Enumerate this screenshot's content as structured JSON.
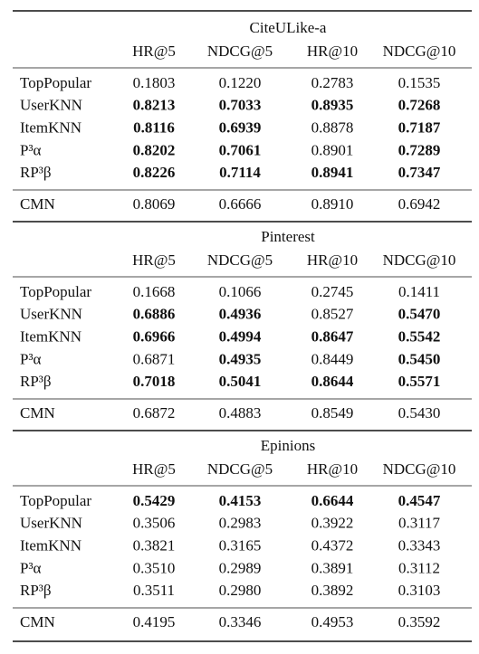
{
  "sections": [
    {
      "title": "CiteULike-a",
      "header": [
        "HR@5",
        "NDCG@5",
        "HR@10",
        "NDCG@10"
      ],
      "rows": [
        {
          "label": "TopPopular",
          "cells": [
            {
              "text": "0.1803",
              "bold": false
            },
            {
              "text": "0.1220",
              "bold": false
            },
            {
              "text": "0.2783",
              "bold": false
            },
            {
              "text": "0.1535",
              "bold": false
            }
          ]
        },
        {
          "label": "UserKNN",
          "cells": [
            {
              "text": "0.8213",
              "bold": true
            },
            {
              "text": "0.7033",
              "bold": true
            },
            {
              "text": "0.8935",
              "bold": true
            },
            {
              "text": "0.7268",
              "bold": true
            }
          ]
        },
        {
          "label": "ItemKNN",
          "cells": [
            {
              "text": "0.8116",
              "bold": true
            },
            {
              "text": "0.6939",
              "bold": true
            },
            {
              "text": "0.8878",
              "bold": false
            },
            {
              "text": "0.7187",
              "bold": true
            }
          ]
        },
        {
          "label": "P³α",
          "cells": [
            {
              "text": "0.8202",
              "bold": true
            },
            {
              "text": "0.7061",
              "bold": true
            },
            {
              "text": "0.8901",
              "bold": false
            },
            {
              "text": "0.7289",
              "bold": true
            }
          ]
        },
        {
          "label": "RP³β",
          "cells": [
            {
              "text": "0.8226",
              "bold": true
            },
            {
              "text": "0.7114",
              "bold": true
            },
            {
              "text": "0.8941",
              "bold": true
            },
            {
              "text": "0.7347",
              "bold": true
            }
          ]
        }
      ],
      "baseline": {
        "label": "CMN",
        "cells": [
          {
            "text": "0.8069",
            "bold": false
          },
          {
            "text": "0.6666",
            "bold": false
          },
          {
            "text": "0.8910",
            "bold": false
          },
          {
            "text": "0.6942",
            "bold": false
          }
        ]
      }
    },
    {
      "title": "Pinterest",
      "header": [
        "HR@5",
        "NDCG@5",
        "HR@10",
        "NDCG@10"
      ],
      "rows": [
        {
          "label": "TopPopular",
          "cells": [
            {
              "text": "0.1668",
              "bold": false
            },
            {
              "text": "0.1066",
              "bold": false
            },
            {
              "text": "0.2745",
              "bold": false
            },
            {
              "text": "0.1411",
              "bold": false
            }
          ]
        },
        {
          "label": "UserKNN",
          "cells": [
            {
              "text": "0.6886",
              "bold": true
            },
            {
              "text": "0.4936",
              "bold": true
            },
            {
              "text": "0.8527",
              "bold": false
            },
            {
              "text": "0.5470",
              "bold": true
            }
          ]
        },
        {
          "label": "ItemKNN",
          "cells": [
            {
              "text": "0.6966",
              "bold": true
            },
            {
              "text": "0.4994",
              "bold": true
            },
            {
              "text": "0.8647",
              "bold": true
            },
            {
              "text": "0.5542",
              "bold": true
            }
          ]
        },
        {
          "label": "P³α",
          "cells": [
            {
              "text": "0.6871",
              "bold": false
            },
            {
              "text": "0.4935",
              "bold": true
            },
            {
              "text": "0.8449",
              "bold": false
            },
            {
              "text": "0.5450",
              "bold": true
            }
          ]
        },
        {
          "label": "RP³β",
          "cells": [
            {
              "text": "0.7018",
              "bold": true
            },
            {
              "text": "0.5041",
              "bold": true
            },
            {
              "text": "0.8644",
              "bold": true
            },
            {
              "text": "0.5571",
              "bold": true
            }
          ]
        }
      ],
      "baseline": {
        "label": "CMN",
        "cells": [
          {
            "text": "0.6872",
            "bold": false
          },
          {
            "text": "0.4883",
            "bold": false
          },
          {
            "text": "0.8549",
            "bold": false
          },
          {
            "text": "0.5430",
            "bold": false
          }
        ]
      }
    },
    {
      "title": "Epinions",
      "header": [
        "HR@5",
        "NDCG@5",
        "HR@10",
        "NDCG@10"
      ],
      "rows": [
        {
          "label": "TopPopular",
          "cells": [
            {
              "text": "0.5429",
              "bold": true
            },
            {
              "text": "0.4153",
              "bold": true
            },
            {
              "text": "0.6644",
              "bold": true
            },
            {
              "text": "0.4547",
              "bold": true
            }
          ]
        },
        {
          "label": "UserKNN",
          "cells": [
            {
              "text": "0.3506",
              "bold": false
            },
            {
              "text": "0.2983",
              "bold": false
            },
            {
              "text": "0.3922",
              "bold": false
            },
            {
              "text": "0.3117",
              "bold": false
            }
          ]
        },
        {
          "label": "ItemKNN",
          "cells": [
            {
              "text": "0.3821",
              "bold": false
            },
            {
              "text": "0.3165",
              "bold": false
            },
            {
              "text": "0.4372",
              "bold": false
            },
            {
              "text": "0.3343",
              "bold": false
            }
          ]
        },
        {
          "label": "P³α",
          "cells": [
            {
              "text": "0.3510",
              "bold": false
            },
            {
              "text": "0.2989",
              "bold": false
            },
            {
              "text": "0.3891",
              "bold": false
            },
            {
              "text": "0.3112",
              "bold": false
            }
          ]
        },
        {
          "label": "RP³β",
          "cells": [
            {
              "text": "0.3511",
              "bold": false
            },
            {
              "text": "0.2980",
              "bold": false
            },
            {
              "text": "0.3892",
              "bold": false
            },
            {
              "text": "0.3103",
              "bold": false
            }
          ]
        }
      ],
      "baseline": {
        "label": "CMN",
        "cells": [
          {
            "text": "0.4195",
            "bold": false
          },
          {
            "text": "0.3346",
            "bold": false
          },
          {
            "text": "0.4953",
            "bold": false
          },
          {
            "text": "0.3592",
            "bold": false
          }
        ]
      }
    }
  ]
}
